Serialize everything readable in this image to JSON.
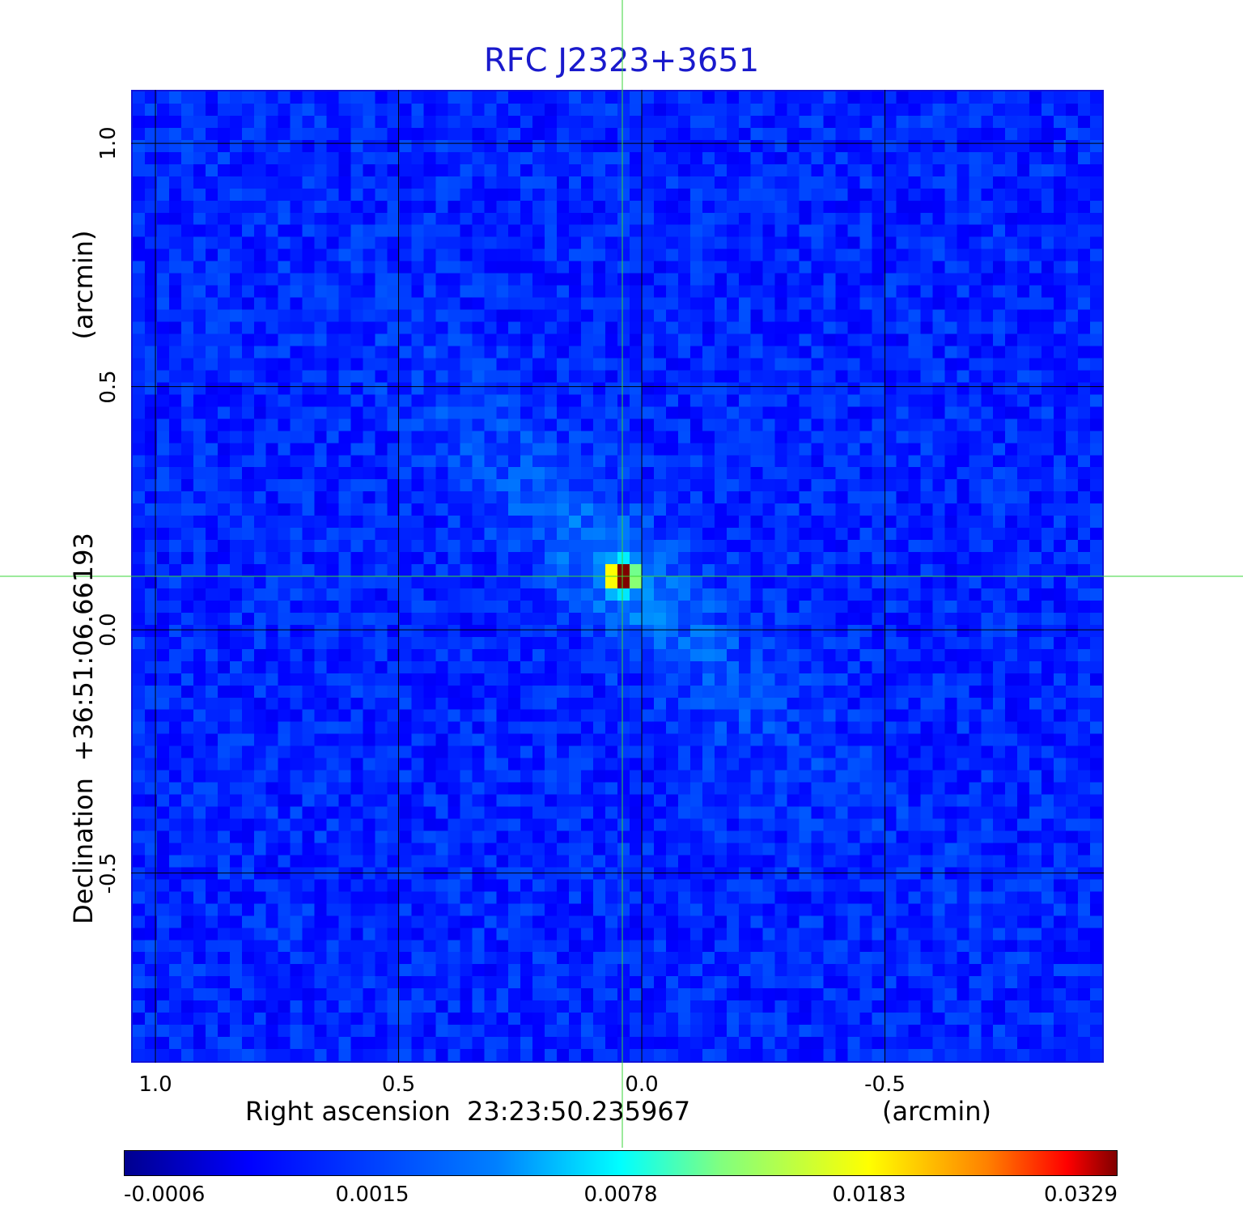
{
  "chart_data": {
    "type": "heatmap",
    "title": "RFC J2323+3651",
    "xlabel": "Right ascension  23:23:50.235967",
    "xunit": "(arcmin)",
    "ylabel": "Declination  +36:51:06.66193",
    "yunit": "(arcmin)",
    "x_ticks": [
      "1.0",
      "0.5",
      "0.0",
      "-0.5"
    ],
    "y_ticks": [
      "1.0",
      "0.5",
      "0.0",
      "-0.5"
    ],
    "xlim": [
      1.05,
      -0.95
    ],
    "ylim": [
      -0.89,
      1.11
    ],
    "grid": true,
    "source_peak": {
      "x": 0.04,
      "y": 0.11,
      "value": 0.0329
    },
    "crosshair": {
      "x": 0.04,
      "y": 0.11
    },
    "colorbar": {
      "ticks": [
        "-0.0006",
        "0.0015",
        "0.0078",
        "0.0183",
        "0.0329"
      ],
      "min": -0.0006,
      "max": 0.0329,
      "colormap": "jet"
    }
  }
}
